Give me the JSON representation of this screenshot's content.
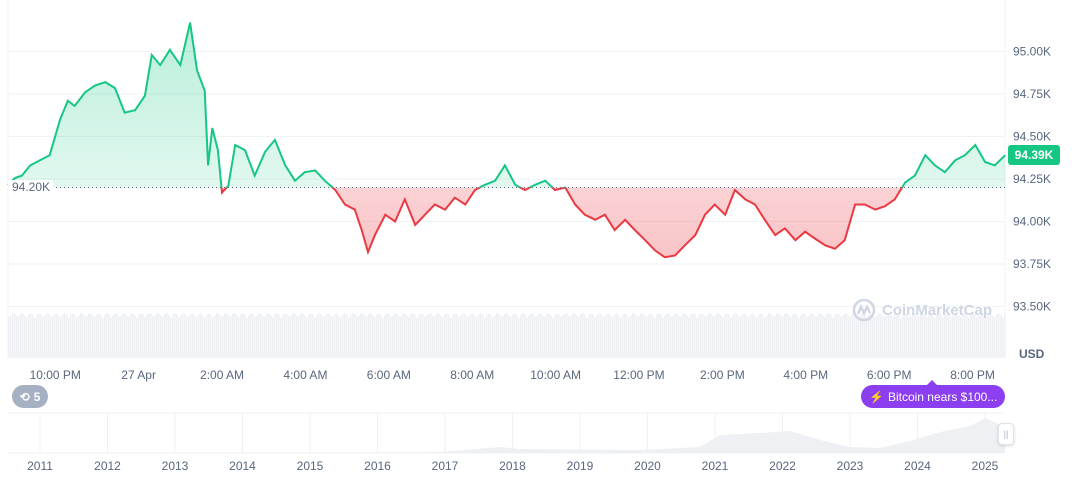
{
  "chart_data": {
    "type": "area",
    "baseline": 94.2,
    "baseline_label": "94.20K",
    "current_price_label": "94.39K",
    "currency_label": "USD",
    "ylim": [
      93.4,
      95.2
    ],
    "y_ticks": [
      "95.00K",
      "94.75K",
      "94.50K",
      "94.25K",
      "94.00K",
      "93.75K",
      "93.50K"
    ],
    "y_tick_values": [
      95.0,
      94.75,
      94.5,
      94.25,
      94.0,
      93.75,
      93.5
    ],
    "x_ticks": [
      {
        "label": "10:00 PM",
        "time": "22:00"
      },
      {
        "label": "27 Apr",
        "time": "00:00"
      },
      {
        "label": "2:00 AM",
        "time": "02:00"
      },
      {
        "label": "4:00 AM",
        "time": "04:00"
      },
      {
        "label": "6:00 AM",
        "time": "06:00"
      },
      {
        "label": "8:00 AM",
        "time": "08:00"
      },
      {
        "label": "10:00 AM",
        "time": "10:00"
      },
      {
        "label": "12:00 PM",
        "time": "12:00"
      },
      {
        "label": "2:00 PM",
        "time": "14:00"
      },
      {
        "label": "4:00 PM",
        "time": "16:00"
      },
      {
        "label": "6:00 PM",
        "time": "18:00"
      },
      {
        "label": "8:00 PM",
        "time": "20:00"
      }
    ],
    "grid": true,
    "colors": {
      "up": "#16c784",
      "down": "#ea3943",
      "up_fill": "#16c784",
      "down_fill": "#ea3943",
      "volume": "#eef0f4"
    },
    "series": [
      [
        "20:52",
        94.215
      ],
      [
        "21:02",
        94.256
      ],
      [
        "21:12",
        94.27
      ],
      [
        "21:24",
        94.33
      ],
      [
        "21:38",
        94.36
      ],
      [
        "21:52",
        94.39
      ],
      [
        "22:07",
        94.6
      ],
      [
        "22:18",
        94.71
      ],
      [
        "22:28",
        94.68
      ],
      [
        "22:43",
        94.76
      ],
      [
        "22:57",
        94.8
      ],
      [
        "23:12",
        94.82
      ],
      [
        "23:26",
        94.785
      ],
      [
        "23:40",
        94.64
      ],
      [
        "23:55",
        94.655
      ],
      [
        "00:09",
        94.74
      ],
      [
        "00:19",
        94.98
      ],
      [
        "00:31",
        94.92
      ],
      [
        "00:45",
        95.01
      ],
      [
        "01:00",
        94.92
      ],
      [
        "01:14",
        95.17
      ],
      [
        "01:24",
        94.89
      ],
      [
        "01:35",
        94.77
      ],
      [
        "01:40",
        94.33
      ],
      [
        "01:46",
        94.55
      ],
      [
        "01:54",
        94.42
      ],
      [
        "02:00",
        94.17
      ],
      [
        "02:09",
        94.21
      ],
      [
        "02:19",
        94.45
      ],
      [
        "02:33",
        94.42
      ],
      [
        "02:47",
        94.27
      ],
      [
        "03:02",
        94.41
      ],
      [
        "03:16",
        94.48
      ],
      [
        "03:31",
        94.33
      ],
      [
        "03:45",
        94.24
      ],
      [
        "03:59",
        94.29
      ],
      [
        "04:14",
        94.3
      ],
      [
        "04:28",
        94.24
      ],
      [
        "04:43",
        94.185
      ],
      [
        "04:57",
        94.1
      ],
      [
        "05:11",
        94.07
      ],
      [
        "05:21",
        93.95
      ],
      [
        "05:30",
        93.82
      ],
      [
        "05:40",
        93.92
      ],
      [
        "05:55",
        94.04
      ],
      [
        "06:09",
        94.0
      ],
      [
        "06:23",
        94.13
      ],
      [
        "06:38",
        93.98
      ],
      [
        "06:52",
        94.04
      ],
      [
        "07:06",
        94.1
      ],
      [
        "07:21",
        94.07
      ],
      [
        "07:35",
        94.14
      ],
      [
        "07:50",
        94.1
      ],
      [
        "08:04",
        94.185
      ],
      [
        "08:18",
        94.215
      ],
      [
        "08:33",
        94.24
      ],
      [
        "08:47",
        94.33
      ],
      [
        "09:02",
        94.215
      ],
      [
        "09:16",
        94.185
      ],
      [
        "09:30",
        94.215
      ],
      [
        "09:45",
        94.24
      ],
      [
        "09:59",
        94.185
      ],
      [
        "10:14",
        94.2
      ],
      [
        "10:28",
        94.1
      ],
      [
        "10:42",
        94.04
      ],
      [
        "10:57",
        94.01
      ],
      [
        "11:11",
        94.04
      ],
      [
        "11:25",
        93.95
      ],
      [
        "11:40",
        94.01
      ],
      [
        "11:54",
        93.95
      ],
      [
        "12:09",
        93.89
      ],
      [
        "12:23",
        93.83
      ],
      [
        "12:37",
        93.79
      ],
      [
        "12:52",
        93.8
      ],
      [
        "13:06",
        93.86
      ],
      [
        "13:21",
        93.92
      ],
      [
        "13:35",
        94.04
      ],
      [
        "13:49",
        94.1
      ],
      [
        "14:04",
        94.04
      ],
      [
        "14:18",
        94.185
      ],
      [
        "14:33",
        94.13
      ],
      [
        "14:47",
        94.1
      ],
      [
        "15:01",
        94.01
      ],
      [
        "15:16",
        93.92
      ],
      [
        "15:30",
        93.96
      ],
      [
        "15:45",
        93.89
      ],
      [
        "15:59",
        93.94
      ],
      [
        "16:13",
        93.9
      ],
      [
        "16:28",
        93.86
      ],
      [
        "16:42",
        93.84
      ],
      [
        "16:56",
        93.89
      ],
      [
        "17:11",
        94.1
      ],
      [
        "17:25",
        94.1
      ],
      [
        "17:40",
        94.07
      ],
      [
        "17:54",
        94.09
      ],
      [
        "18:08",
        94.13
      ],
      [
        "18:23",
        94.23
      ],
      [
        "18:37",
        94.27
      ],
      [
        "18:52",
        94.39
      ],
      [
        "19:06",
        94.33
      ],
      [
        "19:20",
        94.29
      ],
      [
        "19:35",
        94.36
      ],
      [
        "19:49",
        94.39
      ],
      [
        "20:04",
        94.45
      ],
      [
        "20:18",
        94.35
      ],
      [
        "20:32",
        94.33
      ],
      [
        "20:47",
        94.39
      ]
    ],
    "navigator": {
      "years": [
        "2011",
        "2012",
        "2013",
        "2014",
        "2015",
        "2016",
        "2017",
        "2018",
        "2019",
        "2020",
        "2021",
        "2022",
        "2023",
        "2024",
        "2025"
      ]
    }
  },
  "ui": {
    "history_count": "5",
    "history_icon": "history-icon",
    "news_icon": "lightning-icon",
    "news_text": "Bitcoin nears $100...",
    "watermark": "CoinMarketCap"
  }
}
